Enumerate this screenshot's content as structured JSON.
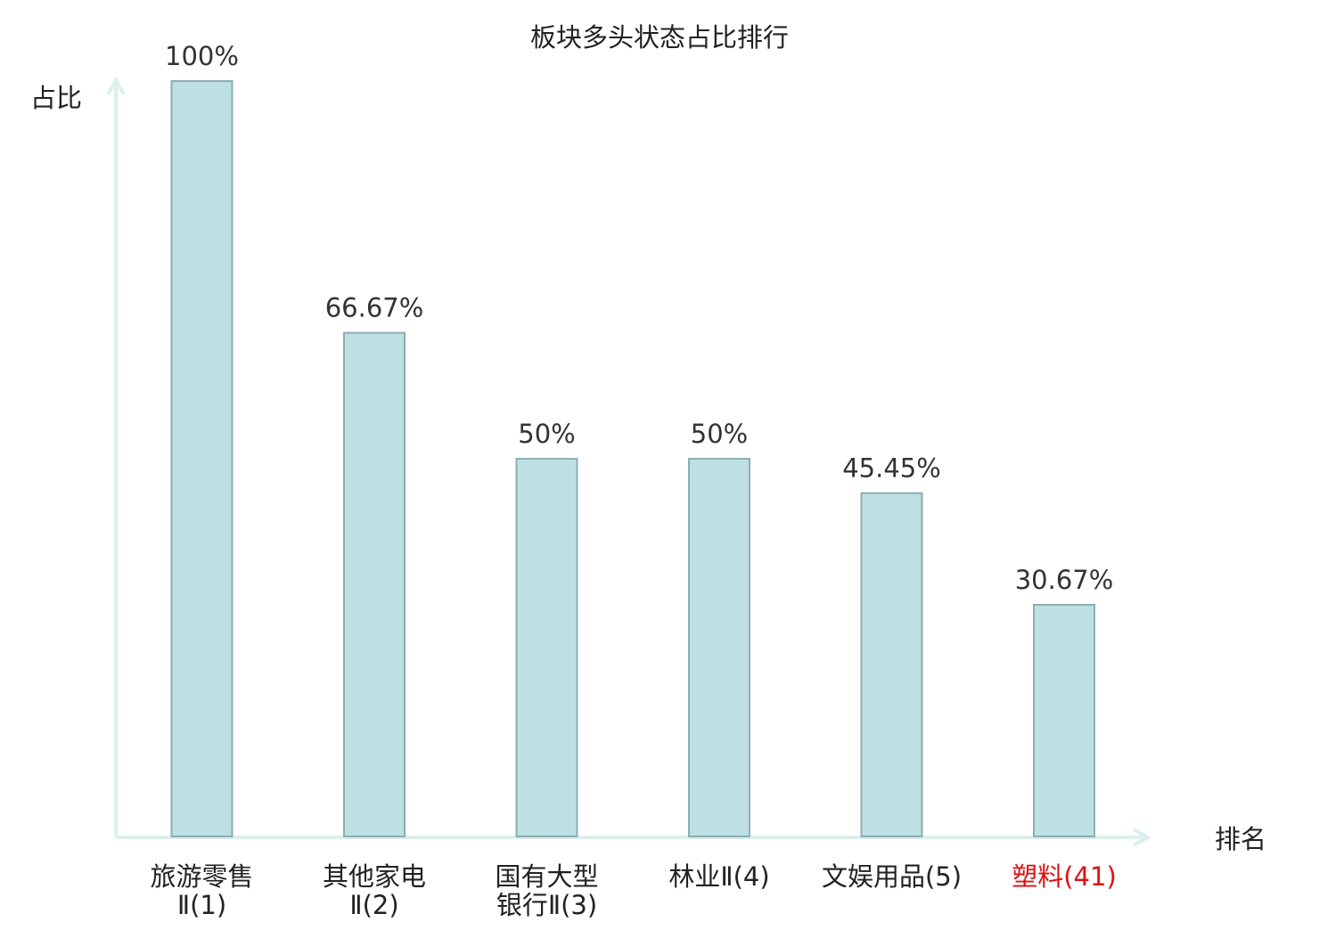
{
  "chart_data": {
    "type": "bar",
    "title": "板块多头状态占比排行",
    "ylabel": "占比",
    "xlabel": "排名",
    "ylim": [
      0,
      100
    ],
    "grid": false,
    "categories": [
      {
        "name_lines": [
          "旅游零售",
          "Ⅱ(1)"
        ],
        "highlight": false
      },
      {
        "name_lines": [
          "其他家电",
          "Ⅱ(2)"
        ],
        "highlight": false
      },
      {
        "name_lines": [
          "国有大型",
          "银行Ⅱ(3)"
        ],
        "highlight": false
      },
      {
        "name_lines": [
          "林业Ⅱ(4)"
        ],
        "highlight": false
      },
      {
        "name_lines": [
          "文娱用品(5)"
        ],
        "highlight": false
      },
      {
        "name_lines": [
          "塑料(41)"
        ],
        "highlight": true
      }
    ],
    "values": [
      100,
      66.67,
      50,
      50,
      45.45,
      30.67
    ],
    "value_labels": [
      "100%",
      "66.67%",
      "50%",
      "50%",
      "45.45%",
      "30.67%"
    ]
  },
  "colors": {
    "bar_fill": "#bde0e3",
    "bar_stroke": "#8eaeb1",
    "axis": "#dcefee",
    "text": "#222222",
    "highlight_text": "#e01010"
  }
}
